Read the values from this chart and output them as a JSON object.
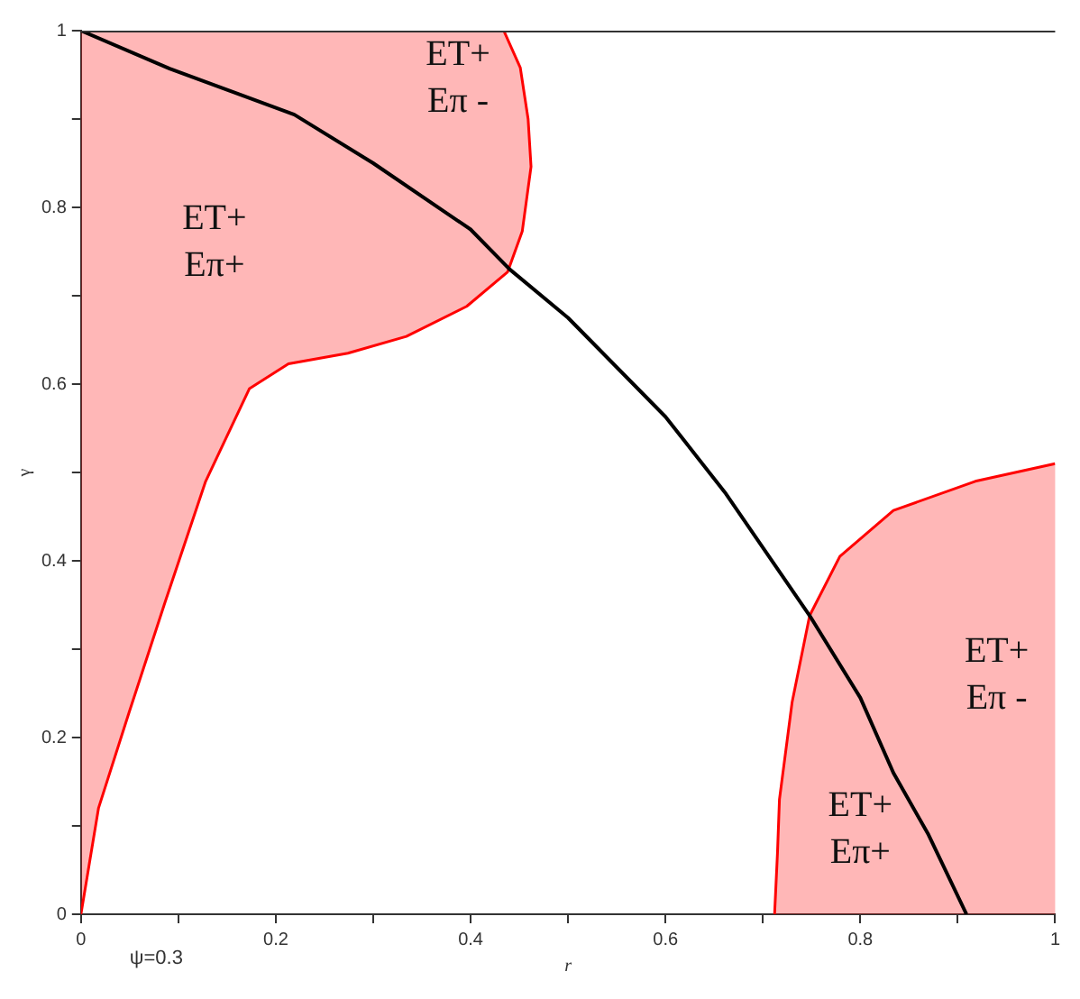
{
  "chart_data": {
    "type": "line",
    "xlabel": "r",
    "ylabel": "γ",
    "xlim": [
      0,
      1
    ],
    "ylim": [
      0,
      1
    ],
    "xticks": [
      0,
      {
        "value": 0.1,
        "label": null
      },
      0.2,
      {
        "value": 0.3,
        "label": null
      },
      0.4,
      {
        "value": 0.5,
        "label": null
      },
      0.6,
      {
        "value": 0.7,
        "label": null
      },
      0.8,
      {
        "value": 0.9,
        "label": null
      },
      1
    ],
    "yticks": [
      0,
      {
        "value": 0.1,
        "label": null
      },
      0.2,
      {
        "value": 0.3,
        "label": null
      },
      0.4,
      {
        "value": 0.5,
        "label": null
      },
      0.6,
      {
        "value": 0.7,
        "label": null
      },
      0.8,
      {
        "value": 0.9,
        "label": null
      },
      1
    ],
    "series": [
      {
        "color": "#000000",
        "x": [
          0,
          0.091,
          0.219,
          0.3,
          0.4,
          0.44,
          0.5,
          0.6,
          0.662,
          0.748,
          0.8,
          0.834,
          0.87,
          0.909
        ],
        "values": [
          1,
          0.957,
          0.905,
          0.85,
          0.775,
          0.73,
          0.675,
          0.563,
          0.476,
          0.338,
          0.245,
          0.16,
          0.09,
          0
        ]
      },
      {
        "type": "area",
        "color": "#ff0000",
        "x": [
          0,
          0.018,
          0.049,
          0.086,
          0.128,
          0.173,
          0.213,
          0.274,
          0.334,
          0.396,
          0.438,
          0.453,
          0.462,
          0.459,
          0.451,
          0.434,
          0
        ],
        "values": [
          0,
          0.12,
          0.227,
          0.352,
          0.49,
          0.595,
          0.623,
          0.635,
          0.654,
          0.688,
          0.727,
          0.773,
          0.846,
          0.9,
          0.958,
          1,
          1
        ]
      },
      {
        "type": "area",
        "color": "#ff0000",
        "x": [
          0.712,
          0.715,
          0.717,
          0.73,
          0.748,
          0.779,
          0.834,
          0.918,
          1,
          1
        ],
        "values": [
          0,
          0.07,
          0.13,
          0.24,
          0.338,
          0.405,
          0.457,
          0.49,
          0.51,
          0
        ]
      }
    ],
    "annotations": [
      "ET+\nEπ+",
      "ET+\nEπ -",
      "ET+\nEπ -",
      "ET+\nEπ+",
      "ψ=0.3"
    ]
  }
}
